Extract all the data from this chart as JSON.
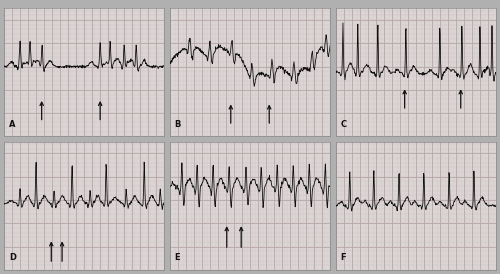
{
  "figure_size": [
    5.0,
    2.74
  ],
  "dpi": 100,
  "background_color": "#b0b0b0",
  "panel_bg_color": "#e0dada",
  "grid_minor_color": "#cbbfbf",
  "grid_major_color": "#b8a8a8",
  "ecg_color": "#111111",
  "arrow_color": "#111111",
  "label_color": "#111111",
  "panel_labels": [
    "A",
    "B",
    "C",
    "D",
    "E",
    "F"
  ],
  "label_fontsize": 6,
  "border_color": "#888888"
}
